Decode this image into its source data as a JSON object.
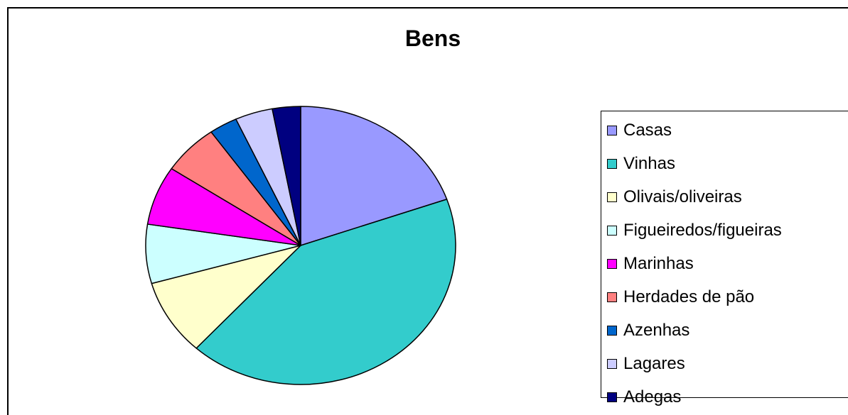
{
  "chart_data": {
    "type": "pie",
    "title": "Bens",
    "categories": [
      "Casas",
      "Vinhas",
      "Olivais/oliveiras",
      "Figueiredos/figueiras",
      "Marinhas",
      "Herdades de pão",
      "Azenhas",
      "Lagares",
      "Adegas"
    ],
    "values": [
      20,
      43,
      9,
      7,
      7,
      6,
      3,
      4,
      3
    ],
    "colors": [
      "#9999FF",
      "#33CCCC",
      "#FFFFCC",
      "#CCFFFF",
      "#FF00FF",
      "#FF8080",
      "#0066CC",
      "#CCCCFF",
      "#000080"
    ],
    "legend_position": "right",
    "start_angle": "12 o'clock, clockwise"
  }
}
